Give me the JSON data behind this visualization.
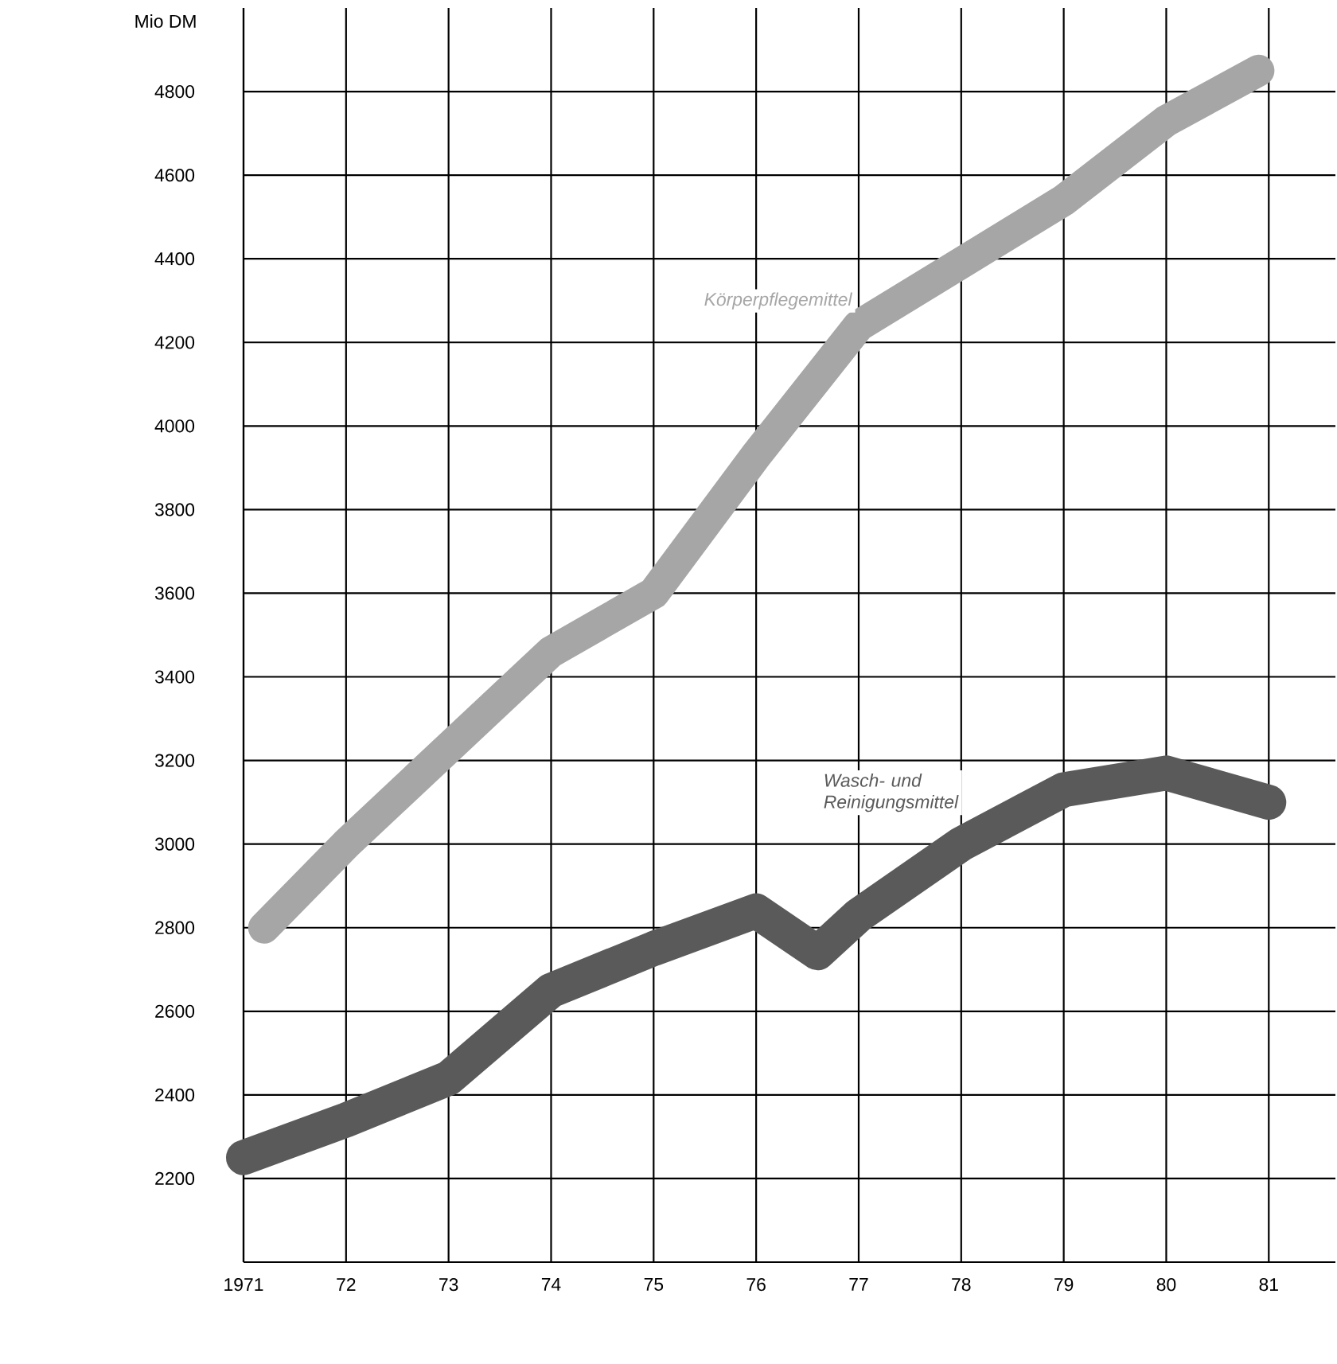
{
  "chart_data": {
    "type": "line",
    "ylabel": "Mio DM",
    "xlim": [
      1971,
      1981.65
    ],
    "ylim": [
      2000,
      5000
    ],
    "xticks": [
      1971,
      {
        "value": 1972,
        "label": "72"
      },
      {
        "value": 1973,
        "label": "73"
      },
      {
        "value": 1974,
        "label": "74"
      },
      {
        "value": 1975,
        "label": "75"
      },
      {
        "value": 1976,
        "label": "76"
      },
      {
        "value": 1977,
        "label": "77"
      },
      {
        "value": 1978,
        "label": "78"
      },
      {
        "value": 1979,
        "label": "79"
      },
      {
        "value": 1980,
        "label": "80"
      },
      {
        "value": 1981,
        "label": "81"
      }
    ],
    "yticks": [
      2200,
      2400,
      2600,
      2800,
      3000,
      3200,
      3400,
      3600,
      3800,
      4000,
      4200,
      4400,
      4600,
      4800
    ],
    "grid": true,
    "series": [
      {
        "name": "Körperpflegemittel",
        "color": "#a6a6a6",
        "x": [
          1971.2,
          1972,
          1973,
          1974,
          1975,
          1976,
          1977,
          1978,
          1979,
          1980,
          1980.9
        ],
        "values": [
          2800,
          3000,
          3230,
          3460,
          3600,
          3930,
          4240,
          4390,
          4540,
          4730,
          4850
        ]
      },
      {
        "name": "Wasch- und Reinigungsmittel",
        "color": "#5a5a5a",
        "x": [
          1971,
          1972,
          1973,
          1974,
          1975,
          1976,
          1976.6,
          1977,
          1978,
          1979,
          1980,
          1981
        ],
        "values": [
          2250,
          2340,
          2440,
          2650,
          2750,
          2840,
          2740,
          2830,
          3000,
          3130,
          3170,
          3100
        ]
      }
    ]
  }
}
